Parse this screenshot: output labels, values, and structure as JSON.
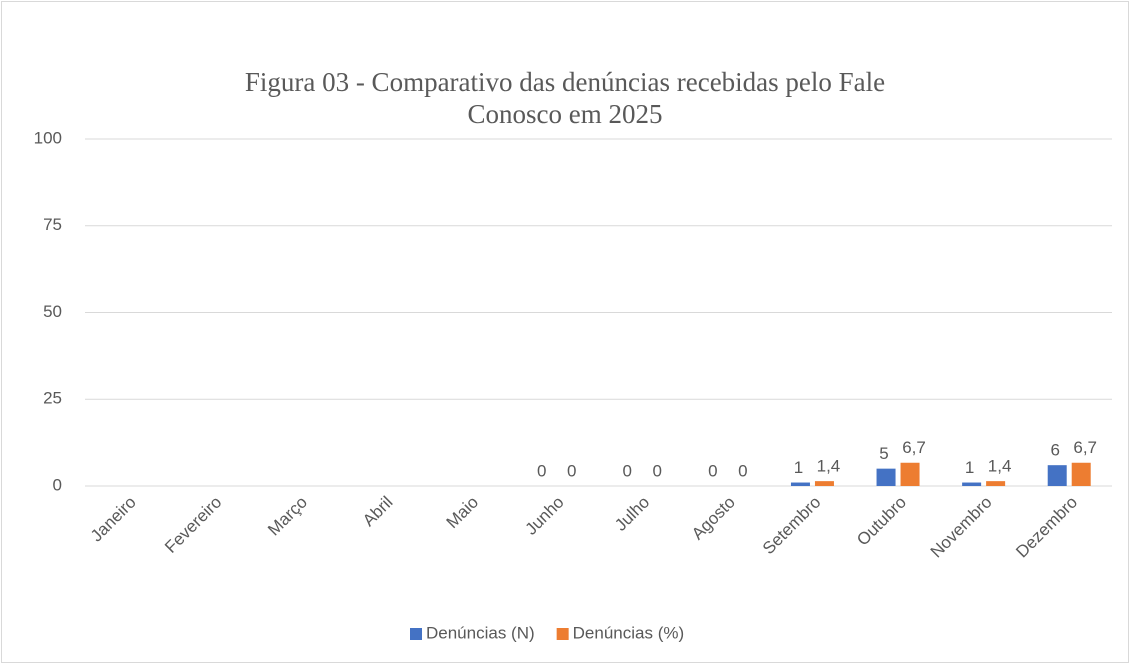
{
  "chart_data": {
    "type": "bar",
    "title": "Figura 03 - Comparativo das denúncias recebidas pelo Fale Conosco em 2025",
    "categories": [
      "Janeiro",
      "Fevereiro",
      "Março",
      "Abril",
      "Maio",
      "Junho",
      "Julho",
      "Agosto",
      "Setembro",
      "Outubro",
      "Novembro",
      "Dezembro"
    ],
    "series": [
      {
        "name": "Denúncias (N)",
        "color": "#4472c4",
        "values": [
          null,
          null,
          null,
          null,
          null,
          0,
          0,
          0,
          1,
          5,
          1,
          6
        ]
      },
      {
        "name": "Denúncias (%)",
        "color": "#ed7d31",
        "values": [
          null,
          null,
          null,
          null,
          null,
          0,
          0,
          0,
          1.4,
          6.7,
          1.4,
          6.7
        ],
        "value_labels": [
          null,
          null,
          null,
          null,
          null,
          "0",
          "0",
          "0",
          "1,4",
          "6,7",
          "1,4",
          "6,7"
        ]
      }
    ],
    "ylim": [
      0,
      100
    ],
    "yticks": [
      0,
      25,
      50,
      75,
      100
    ],
    "grid": true,
    "legend": "bottom"
  }
}
